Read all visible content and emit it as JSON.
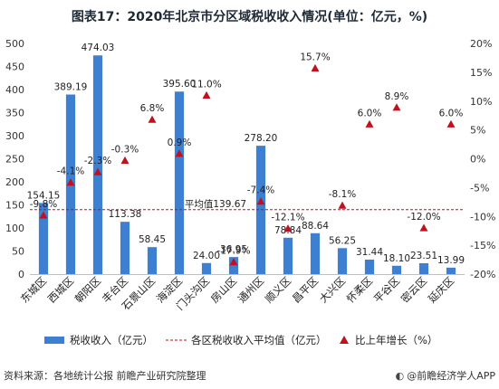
{
  "chart_data": {
    "type": "bar",
    "title": "图表17：2020年北京市分区域税收收入情况(单位：亿元，%)",
    "categories": [
      "东城区",
      "西城区",
      "朝阳区",
      "丰台区",
      "石景山区",
      "海淀区",
      "门头沟区",
      "房山区",
      "通州区",
      "顺义区",
      "昌平区",
      "大兴区",
      "怀柔区",
      "平谷区",
      "密云区",
      "延庆区"
    ],
    "series": [
      {
        "name": "税收收入（亿元）",
        "type": "bar",
        "color": "#3d7fd1",
        "values": [
          154.15,
          389.19,
          474.03,
          113.38,
          58.45,
          395.6,
          24.0,
          36.95,
          278.2,
          78.84,
          88.64,
          56.25,
          31.44,
          18.1,
          23.51,
          13.99
        ],
        "labels": [
          "154.15",
          "389.19",
          "474.03",
          "113.38",
          "58.45",
          "395.60",
          "24.00",
          "36.95",
          "278.20",
          "78.84",
          "88.64",
          "56.25",
          "31.44",
          "18.10",
          "23.51",
          "13.99"
        ]
      },
      {
        "name": "比上年增长（%）",
        "type": "scatter",
        "axis": "right",
        "color": "#c0111f",
        "values": [
          -9.8,
          -4.1,
          -2.3,
          -0.3,
          6.8,
          0.9,
          11.0,
          -17.9,
          -7.4,
          -12.1,
          15.7,
          -8.1,
          6.0,
          8.9,
          -12.0,
          6.0
        ],
        "labels": [
          "-9.8%",
          "-4.1%",
          "-2.3%",
          "-0.3%",
          "6.8%",
          "0.9%",
          "11.0%",
          "-17.9%",
          "-7.4%",
          "-12.1%",
          "15.7%",
          "-8.1%",
          "6.0%",
          "8.9%",
          "-12.0%",
          "6.0%"
        ]
      }
    ],
    "average": {
      "name": "各区税收收入平均值（亿元）",
      "value": 139.67,
      "label": "平均值139.67",
      "color": "#c0111f"
    },
    "y_left": {
      "min": 0,
      "max": 500,
      "ticks": [
        0,
        50,
        100,
        150,
        200,
        250,
        300,
        350,
        400,
        450,
        500
      ]
    },
    "y_right": {
      "min": -20,
      "max": 20,
      "ticks": [
        "-20%",
        "-15%",
        "-10%",
        "-5%",
        "0%",
        "5%",
        "10%",
        "15%",
        "20%"
      ],
      "tick_values": [
        -20,
        -15,
        -10,
        -5,
        0,
        5,
        10,
        15,
        20
      ]
    },
    "grid": false,
    "legend_position": "bottom"
  },
  "footer": {
    "source": "资料来源：各地统计公报 前瞻产业研究院整理",
    "brand": "@前瞻经济学人APP"
  }
}
